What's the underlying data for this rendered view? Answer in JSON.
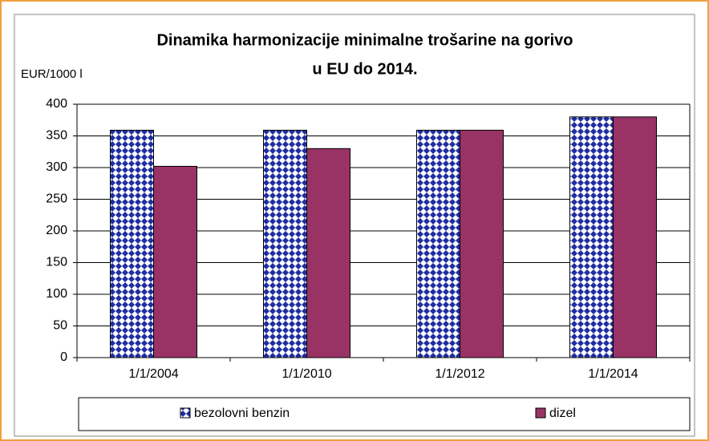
{
  "chart_data": {
    "type": "bar",
    "title": [
      "Dinamika harmonizacije minimalne trošarine na gorivo",
      "u EU do 2014."
    ],
    "y_label": "EUR/1000 l",
    "categories": [
      "1/1/2004",
      "1/1/2010",
      "1/1/2012",
      "1/1/2014"
    ],
    "series": [
      {
        "name": "bezolovni benzin",
        "color": "#1f2ea0",
        "values": [
          359,
          359,
          359,
          380
        ]
      },
      {
        "name": "dizel",
        "color": "#993366",
        "values": [
          302,
          330,
          359,
          380
        ]
      }
    ],
    "ylim": [
      0,
      400
    ],
    "yticks": [
      0,
      50,
      100,
      150,
      200,
      250,
      300,
      350,
      400
    ],
    "grid": true,
    "legend": "bottom"
  }
}
